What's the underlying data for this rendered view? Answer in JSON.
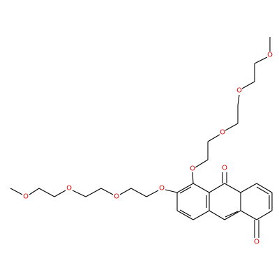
{
  "atoms": [
    {
      "label": "O"
    },
    {
      "label": "O"
    },
    {
      "label": "O"
    },
    {
      "label": "O"
    },
    {
      "label": "O"
    },
    {
      "label": "O"
    },
    {
      "label": "O"
    },
    {
      "label": "O"
    },
    {
      "label": "O"
    },
    {
      "label": "O"
    }
  ]
}
